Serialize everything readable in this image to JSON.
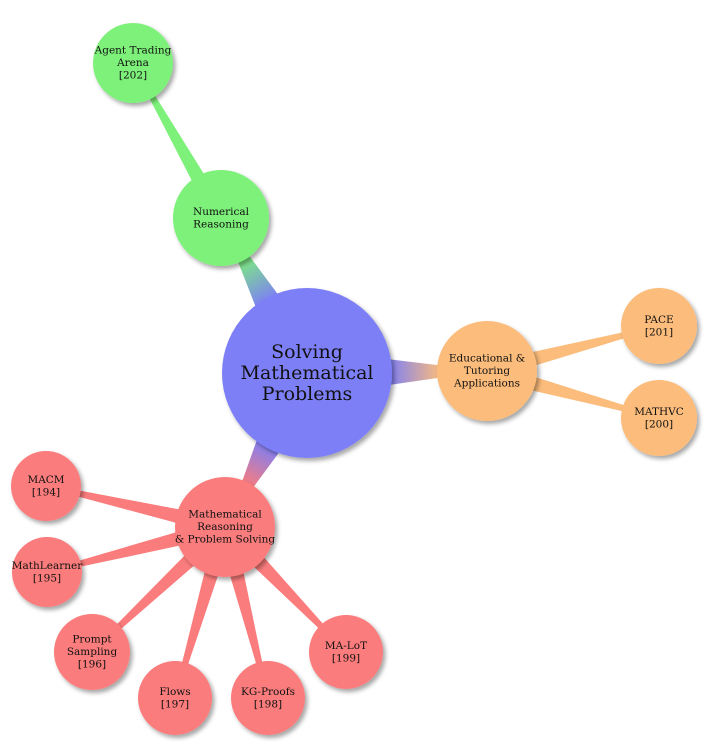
{
  "root": {
    "lines": [
      "Solving",
      "Mathematical",
      "Problems"
    ],
    "color": "#7d7ff6"
  },
  "branches": [
    {
      "id": "numerical",
      "lines": [
        "Numerical",
        "Reasoning"
      ],
      "color": "#7df17a",
      "children": [
        {
          "id": "agent-trading",
          "lines": [
            "Agent Trading",
            "Arena",
            "[202]"
          ]
        }
      ]
    },
    {
      "id": "educational",
      "lines": [
        "Educational &",
        "Tutoring",
        "Applications"
      ],
      "color": "#fbbc7c",
      "children": [
        {
          "id": "pace",
          "lines": [
            "PACE",
            "[201]"
          ]
        },
        {
          "id": "mathvc",
          "lines": [
            "MATHVC",
            "[200]"
          ]
        }
      ]
    },
    {
      "id": "math-reasoning",
      "lines": [
        "Mathematical",
        "Reasoning",
        "& Problem Solving"
      ],
      "color": "#fb7c7c",
      "children": [
        {
          "id": "macm",
          "lines": [
            "MACM",
            "[194]"
          ]
        },
        {
          "id": "mathlearner",
          "lines": [
            "MathLearner",
            "[195]"
          ]
        },
        {
          "id": "prompt-sampling",
          "lines": [
            "Prompt",
            "Sampling",
            "[196]"
          ]
        },
        {
          "id": "flows",
          "lines": [
            "Flows",
            "[197]"
          ]
        },
        {
          "id": "kg-proofs",
          "lines": [
            "KG-Proofs",
            "[198]"
          ]
        },
        {
          "id": "ma-lot",
          "lines": [
            "MA-LoT",
            "[199]"
          ]
        }
      ]
    }
  ]
}
